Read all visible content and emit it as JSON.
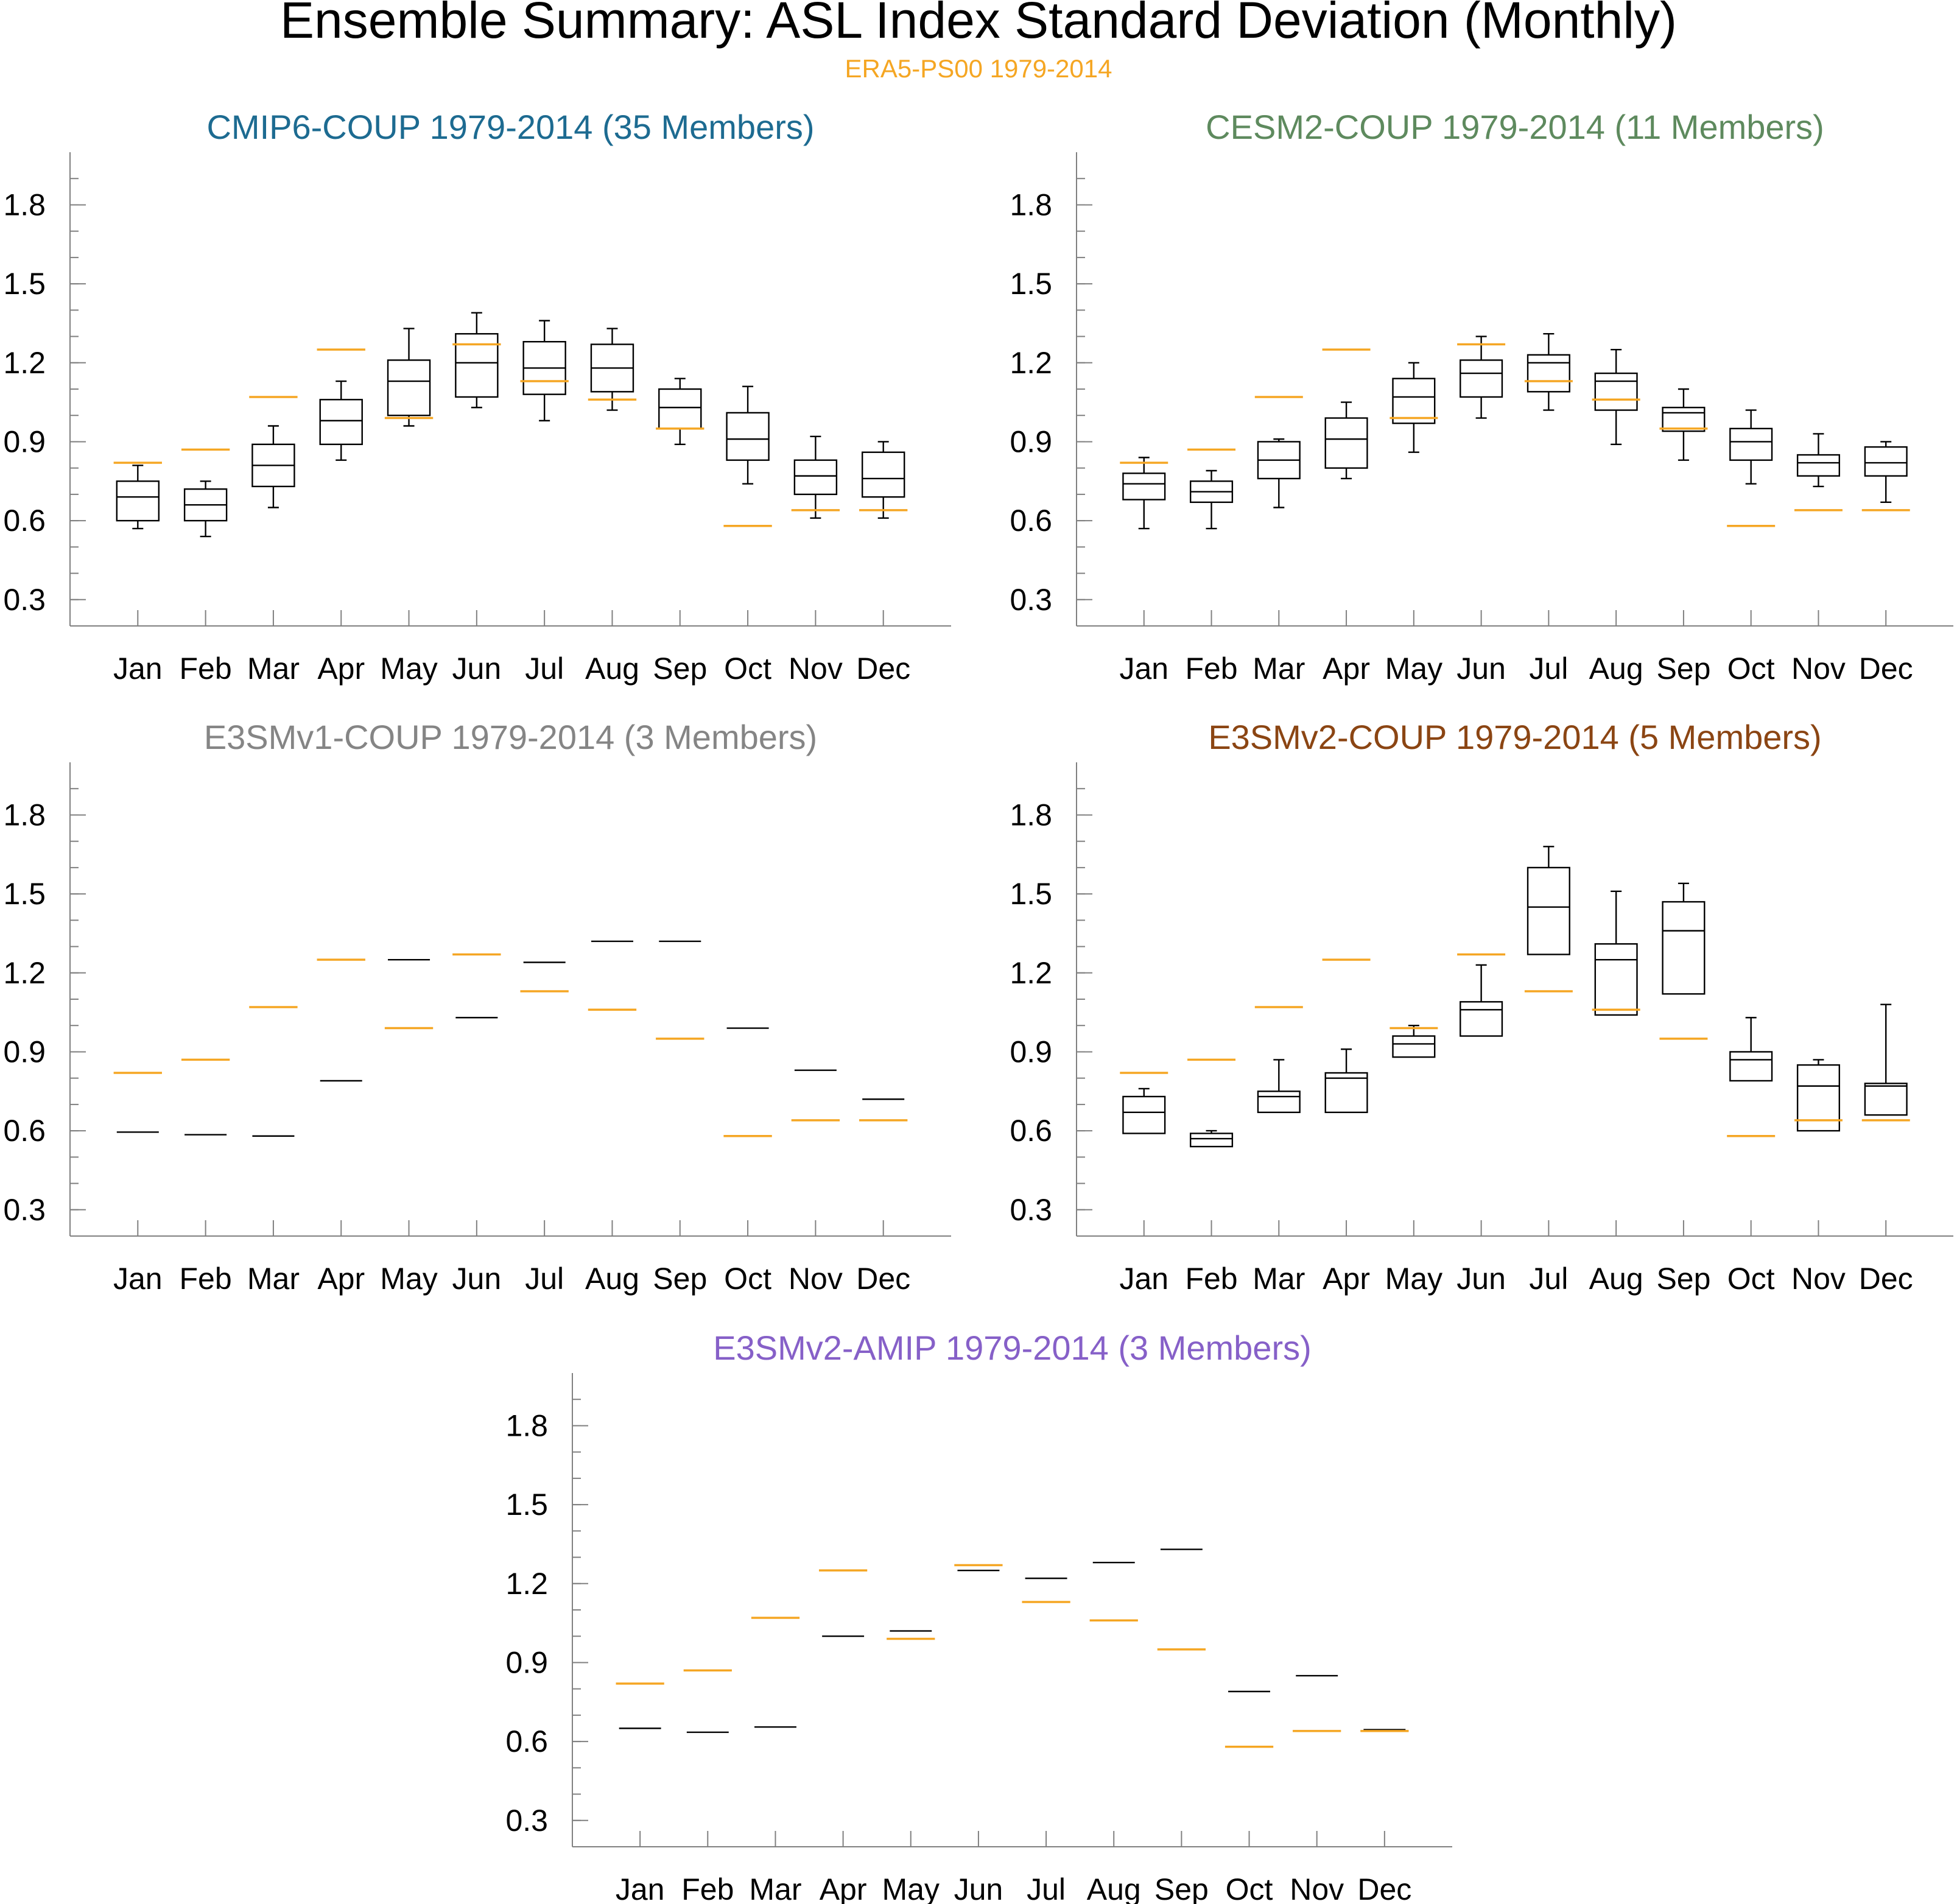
{
  "figure": {
    "title": "Ensemble Summary: ASL Index Standard Deviation (Monthly)",
    "subtitle": "ERA5-PS00 1979-2014",
    "reference_color": "#f5a623"
  },
  "chart_data": [
    {
      "type": "boxplot",
      "title": "CMIP6-COUP 1979-2014 (35 Members)",
      "title_color": "#1d6b91",
      "categories": [
        "Jan",
        "Feb",
        "Mar",
        "Apr",
        "May",
        "Jun",
        "Jul",
        "Aug",
        "Sep",
        "Oct",
        "Nov",
        "Dec"
      ],
      "ylim": [
        0.2,
        2.0
      ],
      "yticks": [
        0.3,
        0.6,
        0.9,
        1.2,
        1.5,
        1.8
      ],
      "boxes": [
        {
          "min": 0.57,
          "q1": 0.6,
          "median": 0.69,
          "q3": 0.75,
          "max": 0.81
        },
        {
          "min": 0.54,
          "q1": 0.6,
          "median": 0.66,
          "q3": 0.72,
          "max": 0.75
        },
        {
          "min": 0.65,
          "q1": 0.73,
          "median": 0.81,
          "q3": 0.89,
          "max": 0.96
        },
        {
          "min": 0.83,
          "q1": 0.89,
          "median": 0.98,
          "q3": 1.06,
          "max": 1.13
        },
        {
          "min": 0.96,
          "q1": 1.0,
          "median": 1.13,
          "q3": 1.21,
          "max": 1.33
        },
        {
          "min": 1.03,
          "q1": 1.07,
          "median": 1.2,
          "q3": 1.31,
          "max": 1.39
        },
        {
          "min": 0.98,
          "q1": 1.08,
          "median": 1.18,
          "q3": 1.28,
          "max": 1.36
        },
        {
          "min": 1.02,
          "q1": 1.09,
          "median": 1.18,
          "q3": 1.27,
          "max": 1.33
        },
        {
          "min": 0.89,
          "q1": 0.95,
          "median": 1.03,
          "q3": 1.1,
          "max": 1.14
        },
        {
          "min": 0.74,
          "q1": 0.83,
          "median": 0.91,
          "q3": 1.01,
          "max": 1.11
        },
        {
          "min": 0.61,
          "q1": 0.7,
          "median": 0.77,
          "q3": 0.83,
          "max": 0.92
        },
        {
          "min": 0.61,
          "q1": 0.69,
          "median": 0.76,
          "q3": 0.86,
          "max": 0.9
        }
      ],
      "reference": [
        0.82,
        0.87,
        1.07,
        1.25,
        0.99,
        1.27,
        1.13,
        1.06,
        0.95,
        0.58,
        0.64,
        0.64
      ]
    },
    {
      "type": "boxplot",
      "title": "CESM2-COUP 1979-2014 (11 Members)",
      "title_color": "#5e8a5e",
      "categories": [
        "Jan",
        "Feb",
        "Mar",
        "Apr",
        "May",
        "Jun",
        "Jul",
        "Aug",
        "Sep",
        "Oct",
        "Nov",
        "Dec"
      ],
      "ylim": [
        0.2,
        2.0
      ],
      "yticks": [
        0.3,
        0.6,
        0.9,
        1.2,
        1.5,
        1.8
      ],
      "boxes": [
        {
          "min": 0.57,
          "q1": 0.68,
          "median": 0.74,
          "q3": 0.78,
          "max": 0.84
        },
        {
          "min": 0.57,
          "q1": 0.67,
          "median": 0.71,
          "q3": 0.75,
          "max": 0.79
        },
        {
          "min": 0.65,
          "q1": 0.76,
          "median": 0.83,
          "q3": 0.9,
          "max": 0.91
        },
        {
          "min": 0.76,
          "q1": 0.8,
          "median": 0.91,
          "q3": 0.99,
          "max": 1.05
        },
        {
          "min": 0.86,
          "q1": 0.97,
          "median": 1.07,
          "q3": 1.14,
          "max": 1.2
        },
        {
          "min": 0.99,
          "q1": 1.07,
          "median": 1.16,
          "q3": 1.21,
          "max": 1.3
        },
        {
          "min": 1.02,
          "q1": 1.09,
          "median": 1.2,
          "q3": 1.23,
          "max": 1.31
        },
        {
          "min": 0.89,
          "q1": 1.02,
          "median": 1.13,
          "q3": 1.16,
          "max": 1.25
        },
        {
          "min": 0.83,
          "q1": 0.94,
          "median": 1.01,
          "q3": 1.03,
          "max": 1.1
        },
        {
          "min": 0.74,
          "q1": 0.83,
          "median": 0.9,
          "q3": 0.95,
          "max": 1.02
        },
        {
          "min": 0.73,
          "q1": 0.77,
          "median": 0.82,
          "q3": 0.85,
          "max": 0.93
        },
        {
          "min": 0.67,
          "q1": 0.77,
          "median": 0.82,
          "q3": 0.88,
          "max": 0.9
        }
      ],
      "reference": [
        0.82,
        0.87,
        1.07,
        1.25,
        0.99,
        1.27,
        1.13,
        1.06,
        0.95,
        0.58,
        0.64,
        0.64
      ]
    },
    {
      "type": "boxplot",
      "title": "E3SMv1-COUP 1979-2014 (3 Members)",
      "title_color": "#858585",
      "categories": [
        "Jan",
        "Feb",
        "Mar",
        "Apr",
        "May",
        "Jun",
        "Jul",
        "Aug",
        "Sep",
        "Oct",
        "Nov",
        "Dec"
      ],
      "ylim": [
        0.2,
        2.0
      ],
      "yticks": [
        0.3,
        0.6,
        0.9,
        1.2,
        1.5,
        1.8
      ],
      "boxes": [
        {
          "min": 0.595,
          "q1": 0.595,
          "median": 0.595,
          "q3": 0.595,
          "max": 0.595
        },
        {
          "min": 0.585,
          "q1": 0.585,
          "median": 0.585,
          "q3": 0.585,
          "max": 0.585
        },
        {
          "min": 0.58,
          "q1": 0.58,
          "median": 0.58,
          "q3": 0.58,
          "max": 0.58
        },
        {
          "min": 0.79,
          "q1": 0.79,
          "median": 0.79,
          "q3": 0.79,
          "max": 0.79
        },
        {
          "min": 1.25,
          "q1": 1.25,
          "median": 1.25,
          "q3": 1.25,
          "max": 1.25
        },
        {
          "min": 1.03,
          "q1": 1.03,
          "median": 1.03,
          "q3": 1.03,
          "max": 1.03
        },
        {
          "min": 1.24,
          "q1": 1.24,
          "median": 1.24,
          "q3": 1.24,
          "max": 1.24
        },
        {
          "min": 1.32,
          "q1": 1.32,
          "median": 1.32,
          "q3": 1.32,
          "max": 1.32
        },
        {
          "min": 1.32,
          "q1": 1.32,
          "median": 1.32,
          "q3": 1.32,
          "max": 1.32
        },
        {
          "min": 0.99,
          "q1": 0.99,
          "median": 0.99,
          "q3": 0.99,
          "max": 0.99
        },
        {
          "min": 0.83,
          "q1": 0.83,
          "median": 0.83,
          "q3": 0.83,
          "max": 0.83
        },
        {
          "min": 0.72,
          "q1": 0.72,
          "median": 0.72,
          "q3": 0.72,
          "max": 0.72
        }
      ],
      "reference": [
        0.82,
        0.87,
        1.07,
        1.25,
        0.99,
        1.27,
        1.13,
        1.06,
        0.95,
        0.58,
        0.64,
        0.64
      ]
    },
    {
      "type": "boxplot",
      "title": "E3SMv2-COUP 1979-2014 (5 Members)",
      "title_color": "#8b4513",
      "categories": [
        "Jan",
        "Feb",
        "Mar",
        "Apr",
        "May",
        "Jun",
        "Jul",
        "Aug",
        "Sep",
        "Oct",
        "Nov",
        "Dec"
      ],
      "ylim": [
        0.2,
        2.0
      ],
      "yticks": [
        0.3,
        0.6,
        0.9,
        1.2,
        1.5,
        1.8
      ],
      "boxes": [
        {
          "min": 0.59,
          "q1": 0.59,
          "median": 0.67,
          "q3": 0.73,
          "max": 0.76
        },
        {
          "min": 0.54,
          "q1": 0.54,
          "median": 0.57,
          "q3": 0.59,
          "max": 0.6
        },
        {
          "min": 0.67,
          "q1": 0.67,
          "median": 0.73,
          "q3": 0.75,
          "max": 0.87
        },
        {
          "min": 0.67,
          "q1": 0.67,
          "median": 0.8,
          "q3": 0.82,
          "max": 0.91
        },
        {
          "min": 0.88,
          "q1": 0.88,
          "median": 0.93,
          "q3": 0.96,
          "max": 1.0
        },
        {
          "min": 0.96,
          "q1": 0.96,
          "median": 1.06,
          "q3": 1.09,
          "max": 1.23
        },
        {
          "min": 1.27,
          "q1": 1.27,
          "median": 1.45,
          "q3": 1.6,
          "max": 1.68
        },
        {
          "min": 1.04,
          "q1": 1.04,
          "median": 1.25,
          "q3": 1.31,
          "max": 1.51
        },
        {
          "min": 1.12,
          "q1": 1.12,
          "median": 1.36,
          "q3": 1.47,
          "max": 1.54
        },
        {
          "min": 0.79,
          "q1": 0.79,
          "median": 0.87,
          "q3": 0.9,
          "max": 1.03
        },
        {
          "min": 0.6,
          "q1": 0.6,
          "median": 0.77,
          "q3": 0.85,
          "max": 0.87
        },
        {
          "min": 0.66,
          "q1": 0.66,
          "median": 0.77,
          "q3": 0.78,
          "max": 1.08
        }
      ],
      "reference": [
        0.82,
        0.87,
        1.07,
        1.25,
        0.99,
        1.27,
        1.13,
        1.06,
        0.95,
        0.58,
        0.64,
        0.64
      ]
    },
    {
      "type": "boxplot",
      "title": "E3SMv2-AMIP 1979-2014 (3 Members)",
      "title_color": "#8660c8",
      "categories": [
        "Jan",
        "Feb",
        "Mar",
        "Apr",
        "May",
        "Jun",
        "Jul",
        "Aug",
        "Sep",
        "Oct",
        "Nov",
        "Dec"
      ],
      "ylim": [
        0.2,
        2.0
      ],
      "yticks": [
        0.3,
        0.6,
        0.9,
        1.2,
        1.5,
        1.8
      ],
      "boxes": [
        {
          "min": 0.65,
          "q1": 0.65,
          "median": 0.65,
          "q3": 0.65,
          "max": 0.65
        },
        {
          "min": 0.635,
          "q1": 0.635,
          "median": 0.635,
          "q3": 0.635,
          "max": 0.635
        },
        {
          "min": 0.655,
          "q1": 0.655,
          "median": 0.655,
          "q3": 0.655,
          "max": 0.655
        },
        {
          "min": 1.0,
          "q1": 1.0,
          "median": 1.0,
          "q3": 1.0,
          "max": 1.0
        },
        {
          "min": 1.02,
          "q1": 1.02,
          "median": 1.02,
          "q3": 1.02,
          "max": 1.02
        },
        {
          "min": 1.25,
          "q1": 1.25,
          "median": 1.25,
          "q3": 1.25,
          "max": 1.25
        },
        {
          "min": 1.22,
          "q1": 1.22,
          "median": 1.22,
          "q3": 1.22,
          "max": 1.22
        },
        {
          "min": 1.28,
          "q1": 1.28,
          "median": 1.28,
          "q3": 1.28,
          "max": 1.28
        },
        {
          "min": 1.33,
          "q1": 1.33,
          "median": 1.33,
          "q3": 1.33,
          "max": 1.33
        },
        {
          "min": 0.79,
          "q1": 0.79,
          "median": 0.79,
          "q3": 0.79,
          "max": 0.79
        },
        {
          "min": 0.85,
          "q1": 0.85,
          "median": 0.85,
          "q3": 0.85,
          "max": 0.85
        },
        {
          "min": 0.645,
          "q1": 0.645,
          "median": 0.645,
          "q3": 0.645,
          "max": 0.645
        }
      ],
      "reference": [
        0.82,
        0.87,
        1.07,
        1.25,
        0.99,
        1.27,
        1.13,
        1.06,
        0.95,
        0.58,
        0.64,
        0.64
      ]
    }
  ]
}
